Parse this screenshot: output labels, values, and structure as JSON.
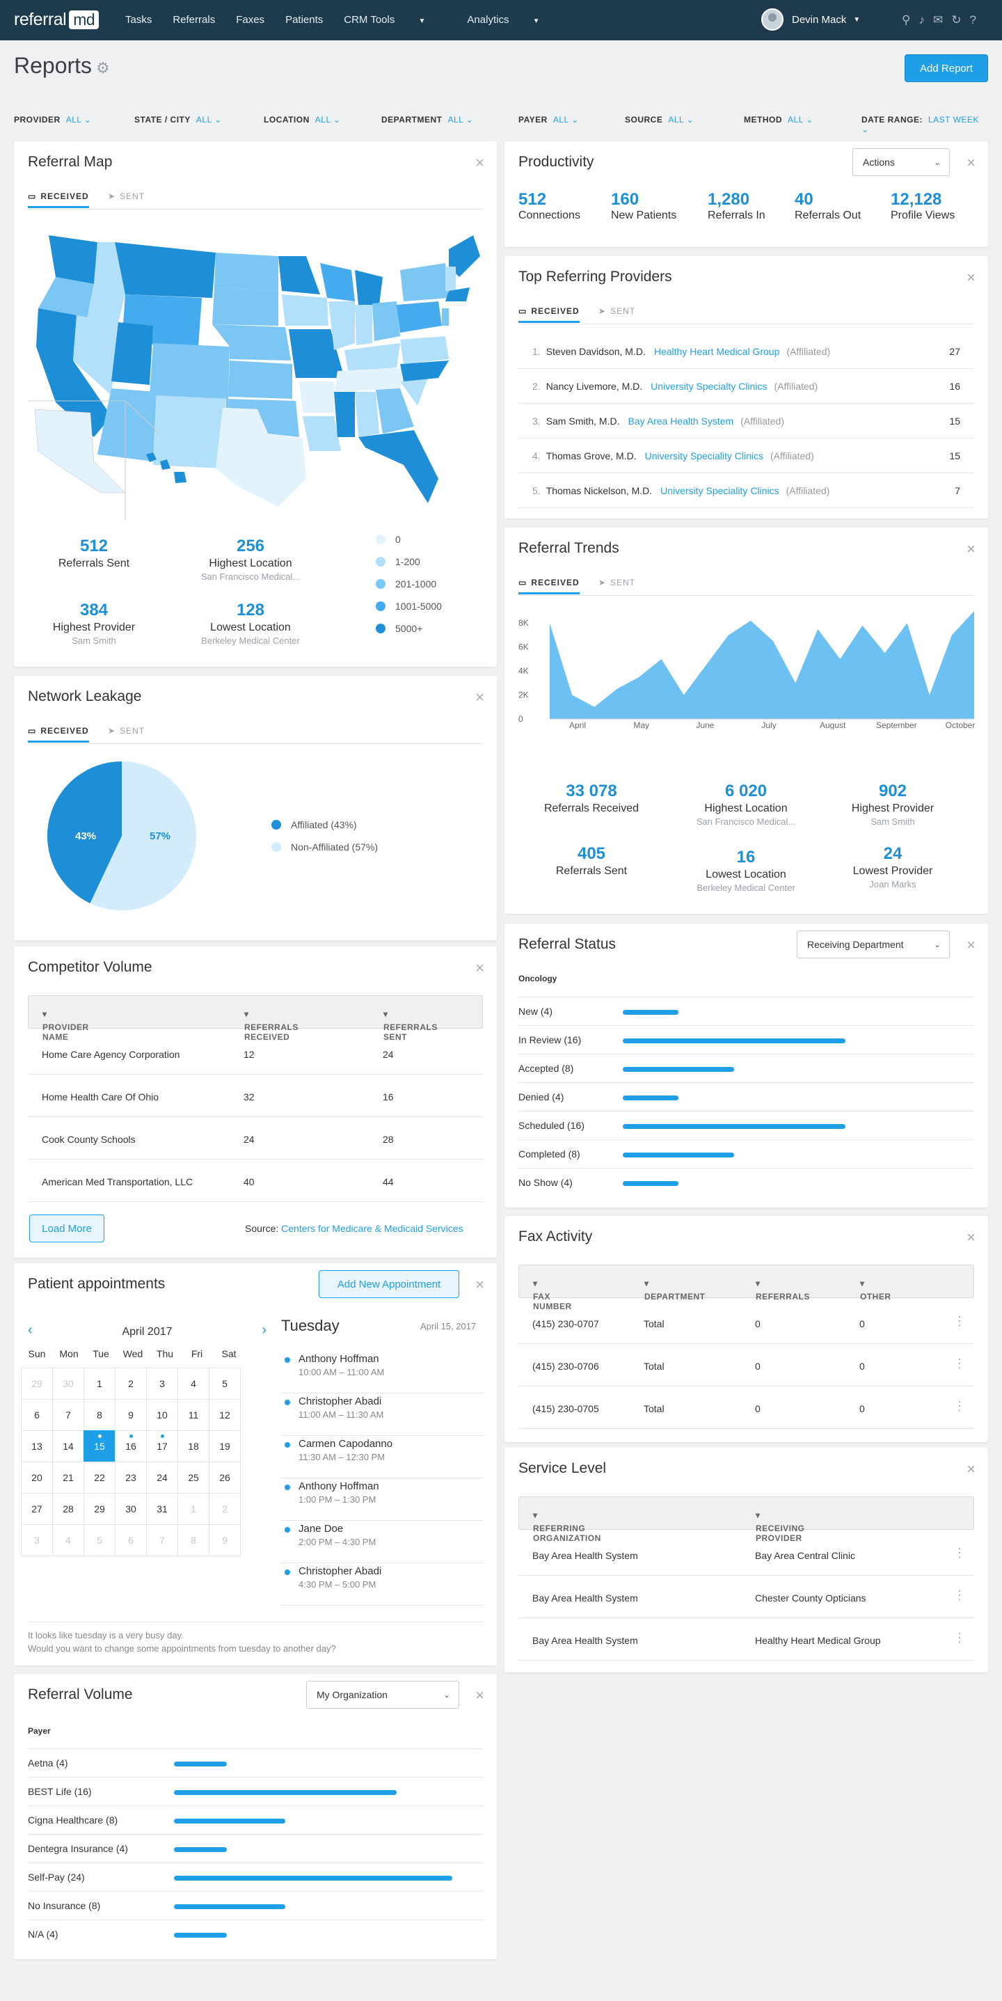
{
  "app": {
    "logo_a": "referral",
    "logo_b": "md",
    "nav": [
      "Tasks",
      "Referrals",
      "Faxes",
      "Patients",
      "CRM Tools",
      "Analytics"
    ],
    "user": "Devin Mack"
  },
  "page": {
    "title": "Reports",
    "add_report": "Add Report"
  },
  "filters": [
    {
      "label": "PROVIDER",
      "value": "ALL"
    },
    {
      "label": "STATE / CITY",
      "value": "ALL"
    },
    {
      "label": "LOCATION",
      "value": "ALL"
    },
    {
      "label": "DEPARTMENT",
      "value": "ALL"
    },
    {
      "label": "PAYER",
      "value": "ALL"
    },
    {
      "label": "SOURCE",
      "value": "ALL"
    },
    {
      "label": "METHOD",
      "value": "ALL"
    },
    {
      "label": "DATE RANGE:",
      "value": "LAST WEEK"
    }
  ],
  "tabs": {
    "received": "RECEIVED",
    "sent": "SENT"
  },
  "referral_map": {
    "title": "Referral Map",
    "stats": [
      {
        "n": "512",
        "l": "Referrals Sent",
        "s": ""
      },
      {
        "n": "256",
        "l": "Highest Location",
        "s": "San Francisco Medical..."
      },
      {
        "n": "384",
        "l": "Highest Provider",
        "s": "Sam Smith"
      },
      {
        "n": "128",
        "l": "Lowest Location",
        "s": "Berkeley Medical Center"
      }
    ],
    "legend": [
      {
        "label": "0",
        "color": "#e3f3fd"
      },
      {
        "label": "1-200",
        "color": "#b2dff9"
      },
      {
        "label": "201-1000",
        "color": "#7cc6f4"
      },
      {
        "label": "1001-5000",
        "color": "#44acee"
      },
      {
        "label": "5000+",
        "color": "#1e8fd6"
      }
    ]
  },
  "productivity": {
    "title": "Productivity",
    "actions": "Actions",
    "stats": [
      {
        "n": "512",
        "l": "Connections"
      },
      {
        "n": "160",
        "l": "New Patients"
      },
      {
        "n": "1,280",
        "l": "Referrals In"
      },
      {
        "n": "40",
        "l": "Referrals Out"
      },
      {
        "n": "12,128",
        "l": "Profile Views"
      }
    ]
  },
  "top_providers": {
    "title": "Top Referring Providers",
    "rows": [
      {
        "idx": "1.",
        "name": "Steven Davidson, M.D.",
        "org": "Healthy Heart Medical Group",
        "aff": "(Affiliated)",
        "count": "27"
      },
      {
        "idx": "2.",
        "name": "Nancy Livemore, M.D.",
        "org": "University Specialty Clinics",
        "aff": "(Affiliated)",
        "count": "16"
      },
      {
        "idx": "3.",
        "name": "Sam Smith, M.D.",
        "org": "Bay Area Health System",
        "aff": "(Affiliated)",
        "count": "15"
      },
      {
        "idx": "4.",
        "name": "Thomas Grove, M.D.",
        "org": "University Speciality Clinics",
        "aff": "(Affiliated)",
        "count": "15"
      },
      {
        "idx": "5.",
        "name": "Thomas Nickelson, M.D.",
        "org": "University Speciality Clinics",
        "aff": "(Affiliated)",
        "count": "7"
      }
    ]
  },
  "network_leakage": {
    "title": "Network Leakage",
    "legend": [
      "Affiliated (43%)",
      "Non-Affiliated (57%)"
    ],
    "slice_a": "43%",
    "slice_b": "57%"
  },
  "chart_data": [
    {
      "type": "area",
      "title": "Referral Trends",
      "x_labels": [
        "April",
        "May",
        "June",
        "July",
        "August",
        "September",
        "October"
      ],
      "y_ticks": [
        "0",
        "2K",
        "4K",
        "6K",
        "8K"
      ],
      "ylim": [
        0,
        9000
      ],
      "values": [
        8000,
        2000,
        1000,
        2500,
        3500,
        5000,
        2000,
        4500,
        7000,
        8200,
        6500,
        3000,
        7500,
        5000,
        7800,
        5500,
        8000,
        2000,
        7000,
        9000
      ]
    },
    {
      "type": "pie",
      "title": "Network Leakage",
      "labels": [
        "Affiliated",
        "Non-Affiliated"
      ],
      "values": [
        43,
        57
      ]
    }
  ],
  "referral_trends": {
    "title": "Referral Trends",
    "stats": [
      {
        "n": "33 078",
        "l": "Referrals Received",
        "s": ""
      },
      {
        "n": "6 020",
        "l": "Highest Location",
        "s": "San Francisco Medical..."
      },
      {
        "n": "902",
        "l": "Highest Provider",
        "s": "Sam Smith"
      },
      {
        "n": "405",
        "l": "Referrals Sent",
        "s": ""
      },
      {
        "n": "16",
        "l": "Lowest Location",
        "s": "Berkeley Medical Center"
      },
      {
        "n": "24",
        "l": "Lowest Provider",
        "s": "Joan Marks"
      }
    ]
  },
  "competitor": {
    "title": "Competitor Volume",
    "cols": [
      "PROVIDER NAME",
      "REFERRALS RECEIVED",
      "REFERRALS SENT"
    ],
    "rows": [
      [
        "Home Care Agency Corporation",
        "12",
        "24"
      ],
      [
        "Home Health Care Of Ohio",
        "32",
        "16"
      ],
      [
        "Cook County Schools",
        "24",
        "28"
      ],
      [
        "American Med Transportation, LLC",
        "40",
        "44"
      ]
    ],
    "load_more": "Load More",
    "source_label": "Source:",
    "source_link": "Centers for Medicare & Medicaid Services"
  },
  "referral_status": {
    "title": "Referral Status",
    "select": "Receiving Department",
    "group": "Oncology",
    "rows": [
      {
        "label": "New (4)",
        "frac": 0.25
      },
      {
        "label": "In Review (16)",
        "frac": 1
      },
      {
        "label": "Accepted (8)",
        "frac": 0.5
      },
      {
        "label": "Denied (4)",
        "frac": 0.25
      },
      {
        "label": "Scheduled (16)",
        "frac": 1
      },
      {
        "label": "Completed (8)",
        "frac": 0.5
      },
      {
        "label": "No Show (4)",
        "frac": 0.25
      }
    ]
  },
  "fax": {
    "title": "Fax Activity",
    "cols": [
      "FAX NUMBER",
      "DEPARTMENT",
      "REFERRALS",
      "OTHER"
    ],
    "rows": [
      [
        "(415) 230-0707",
        "Total",
        "0",
        "0"
      ],
      [
        "(415) 230-0706",
        "Total",
        "0",
        "0"
      ],
      [
        "(415) 230-0705",
        "Total",
        "0",
        "0"
      ]
    ]
  },
  "appointments": {
    "title": "Patient appointments",
    "add": "Add New Appointment",
    "month": "April 2017",
    "weekdays": [
      "Sun",
      "Mon",
      "Tue",
      "Wed",
      "Thu",
      "Fri",
      "Sat"
    ],
    "days": [
      "29",
      "30",
      "1",
      "2",
      "3",
      "4",
      "5",
      "6",
      "7",
      "8",
      "9",
      "10",
      "11",
      "12",
      "13",
      "14",
      "15",
      "16",
      "17",
      "18",
      "19",
      "20",
      "21",
      "22",
      "23",
      "24",
      "25",
      "26",
      "27",
      "28",
      "29",
      "30",
      "31",
      "1",
      "2",
      "3",
      "4",
      "5",
      "6",
      "7",
      "8",
      "9"
    ],
    "day_title": "Tuesday",
    "day_date": "April 15, 2017",
    "list": [
      {
        "n": "Anthony Hoffman",
        "t": "10:00 AM – 11:00 AM"
      },
      {
        "n": "Christopher Abadi",
        "t": "11:00 AM – 11:30 AM"
      },
      {
        "n": "Carmen Capodanno",
        "t": "11:30 AM – 12:30 PM"
      },
      {
        "n": "Anthony Hoffman",
        "t": "1:00 PM – 1:30 PM"
      },
      {
        "n": "Jane Doe",
        "t": "2:00 PM – 4:30 PM"
      },
      {
        "n": "Christopher Abadi",
        "t": "4:30 PM – 5:00 PM"
      }
    ],
    "note1": "It looks like tuesday is a very busy day.",
    "note2": "Would you want to change some appointments from tuesday to another day?"
  },
  "service": {
    "title": "Service Level",
    "cols": [
      "REFERRING ORGANIZATION",
      "RECEIVING PROVIDER"
    ],
    "rows": [
      [
        "Bay Area Health System",
        "Bay Area Central Clinic"
      ],
      [
        "Bay Area Health System",
        "Chester County Opticians"
      ],
      [
        "Bay Area Health System",
        "Healthy Heart Medical Group"
      ]
    ]
  },
  "volume": {
    "title": "Referral Volume",
    "select": "My Organization",
    "group": "Payer",
    "rows": [
      {
        "label": "Aetna (4)",
        "frac": 0.19
      },
      {
        "label": "BEST Life (16)",
        "frac": 0.8
      },
      {
        "label": "Cigna Healthcare (8)",
        "frac": 0.4
      },
      {
        "label": "Dentegra Insurance (4)",
        "frac": 0.19
      },
      {
        "label": "Self-Pay (24)",
        "frac": 1
      },
      {
        "label": "No Insurance (8)",
        "frac": 0.4
      },
      {
        "label": "N/A (4)",
        "frac": 0.19
      }
    ]
  }
}
